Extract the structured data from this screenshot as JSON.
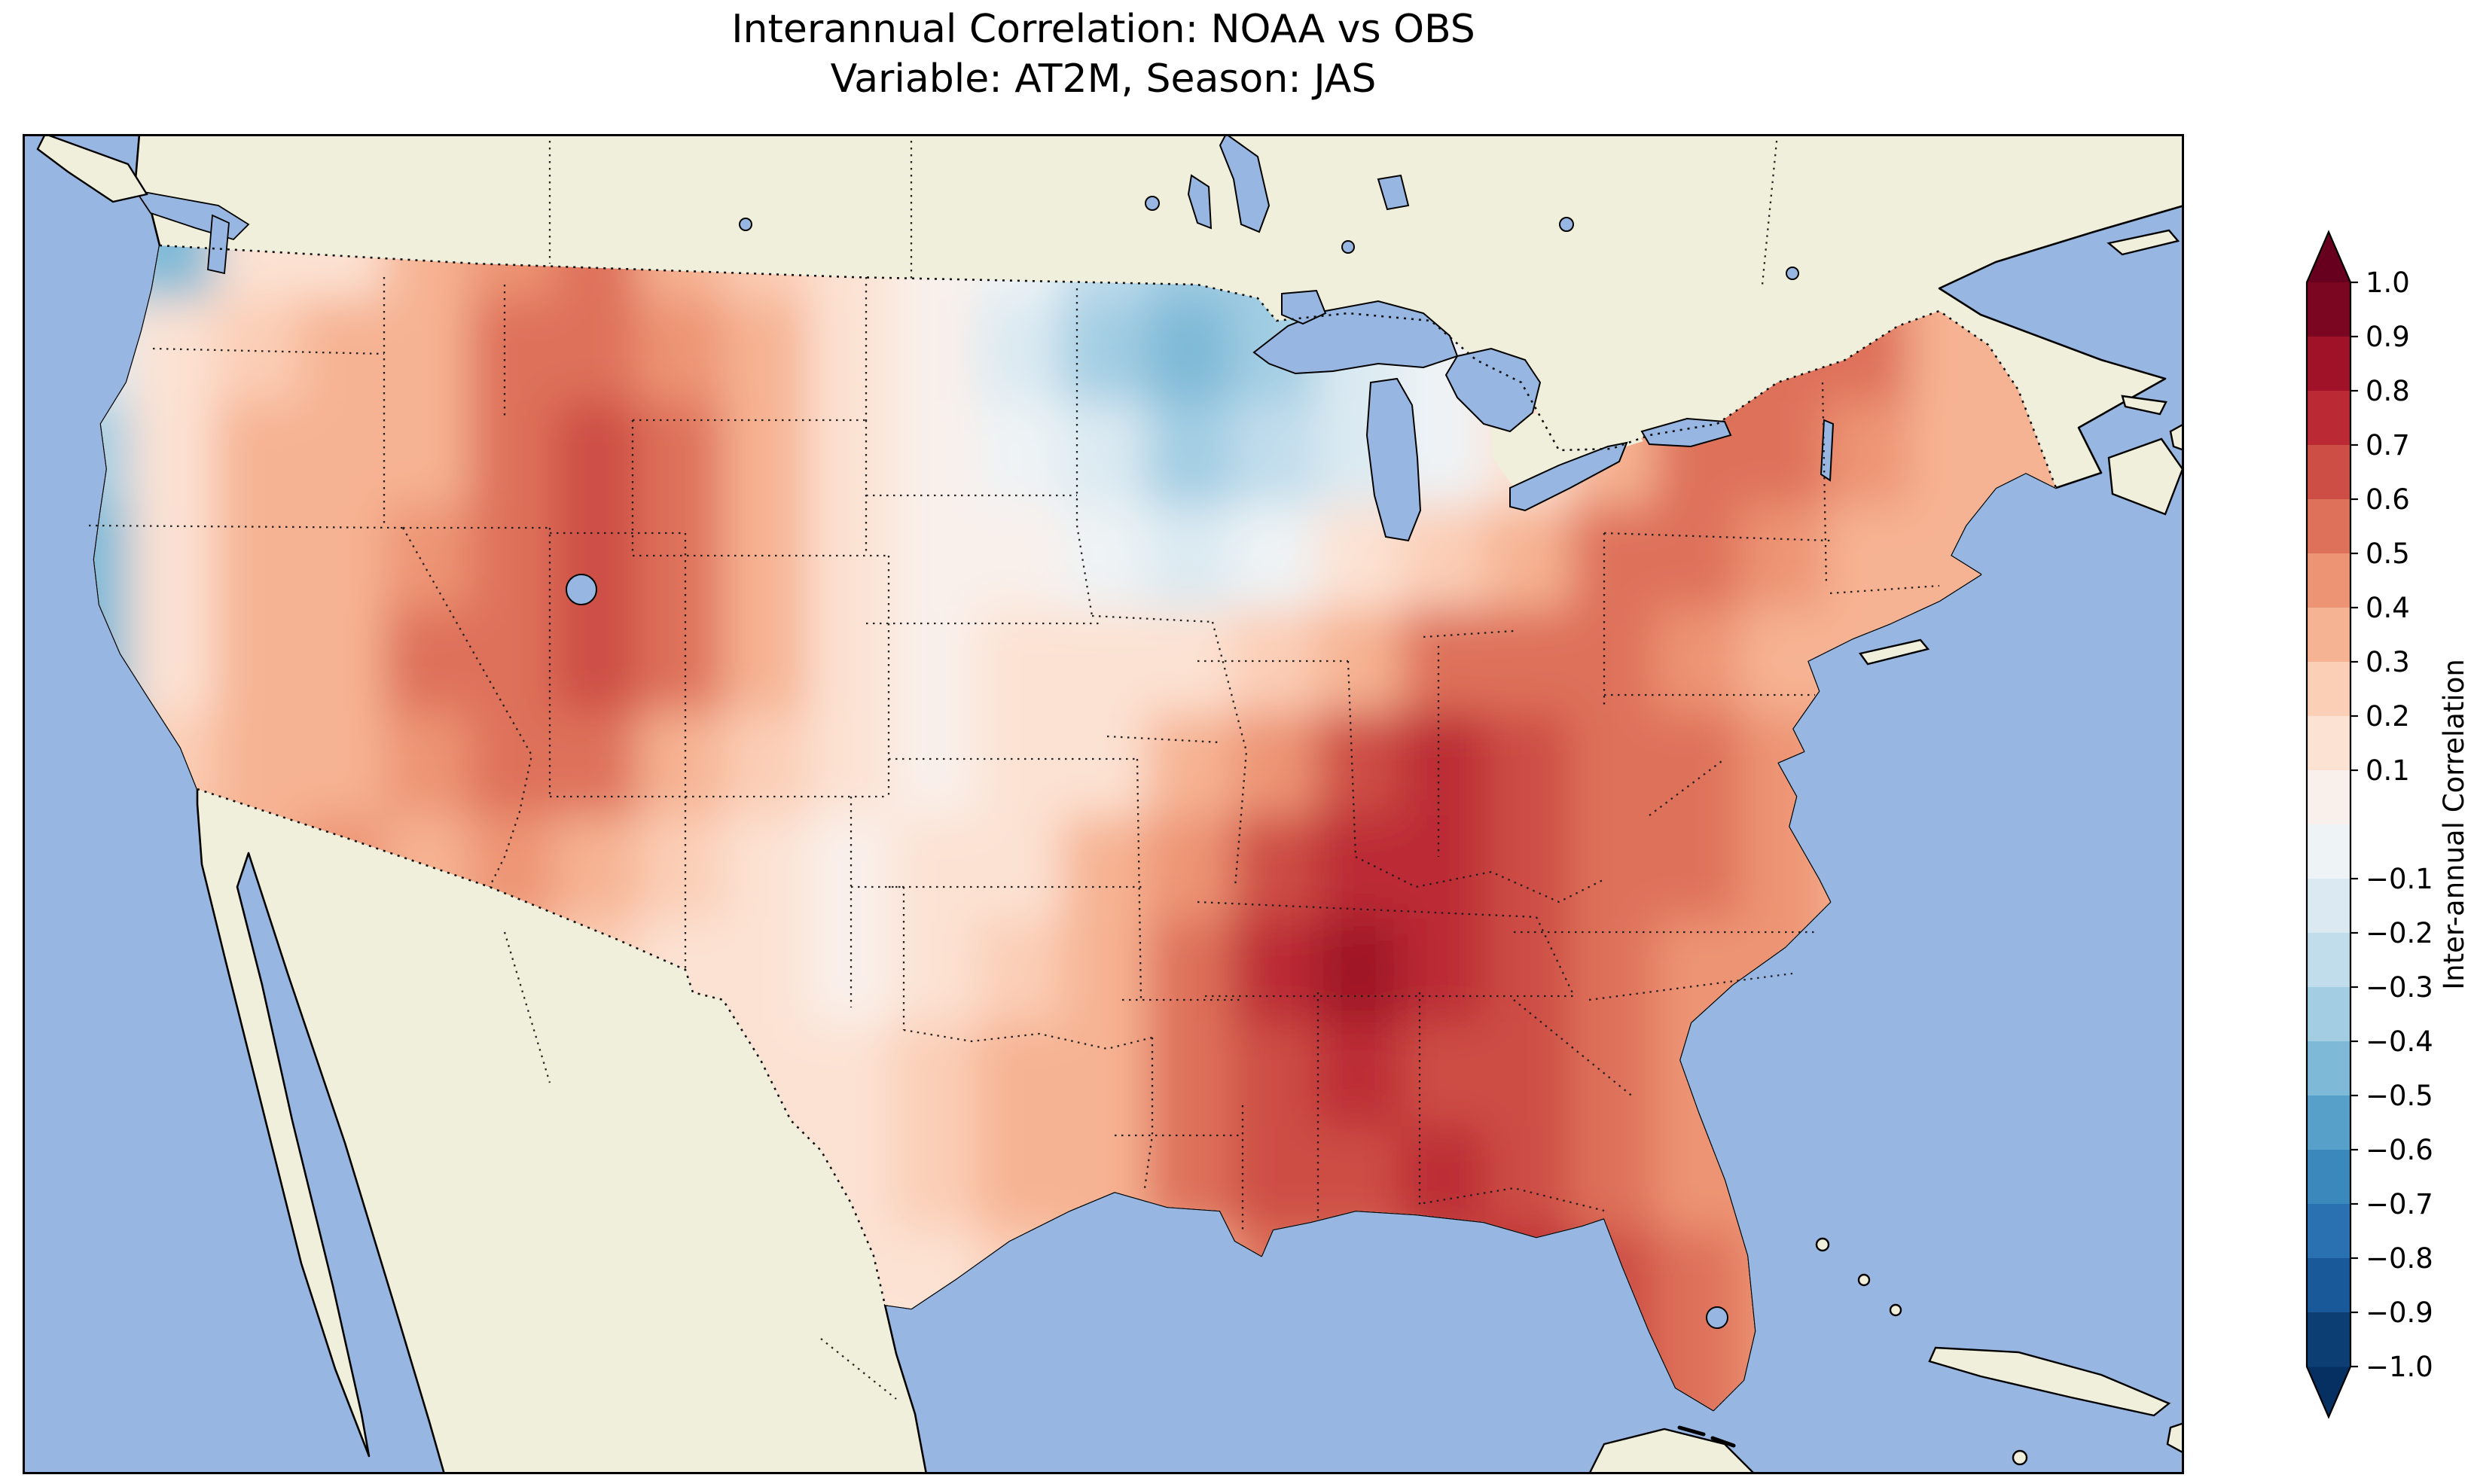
{
  "figure": {
    "title_line1": "Interannual Correlation: NOAA vs OBS",
    "title_line2": "Variable: AT2M, Season: JAS"
  },
  "colorbar": {
    "label": "Inter-annual Correlation",
    "tick_labels": [
      "1.0",
      "0.9",
      "0.8",
      "0.7",
      "0.6",
      "0.5",
      "0.4",
      "0.3",
      "0.2",
      "0.1",
      "−0.1",
      "−0.2",
      "−0.3",
      "−0.4",
      "−0.5",
      "−0.6",
      "−0.7",
      "−0.8",
      "−0.9",
      "−1.0"
    ],
    "tick_values": [
      1.0,
      0.9,
      0.8,
      0.7,
      0.6,
      0.5,
      0.4,
      0.3,
      0.2,
      0.1,
      -0.1,
      -0.2,
      -0.3,
      -0.4,
      -0.5,
      -0.6,
      -0.7,
      -0.8,
      -0.9,
      -1.0
    ],
    "vmin": -1.0,
    "vmax": 1.0,
    "band_colors_low_to_high": [
      "#0c3e74",
      "#1a5999",
      "#2a71b2",
      "#3b88bd",
      "#57a0ca",
      "#7eb9d7",
      "#a2cde3",
      "#c1ddec",
      "#dbeaf2",
      "#eef3f5",
      "#f9f0eb",
      "#fce2d3",
      "#fbceb6",
      "#f6b393",
      "#ed9475",
      "#de715a",
      "#cd4e45",
      "#bb2a34",
      "#9f1228",
      "#7a0622"
    ],
    "under_color": "#053061",
    "over_color": "#67001f"
  },
  "map": {
    "ocean_color": "#97b6e1",
    "land_color": "#efefdb",
    "lake_color": "#97b6e1",
    "coastline_color": "#000000",
    "border_line_style": "dotted",
    "region": "Contiguous United States with southern Canada and northern Mexico"
  },
  "chart_data": {
    "type": "heatmap",
    "title": "Interannual Correlation: NOAA vs OBS",
    "subtitle": "Variable: AT2M, Season: JAS",
    "variable": "AT2M",
    "season": "JAS",
    "datasets_compared": [
      "NOAA",
      "OBS"
    ],
    "colorbar_label": "Inter-annual Correlation",
    "colormap": "RdBu_r",
    "level_step": 0.1,
    "vmin": -1.0,
    "vmax": 1.0,
    "grid_lon_range": [
      -125,
      -67
    ],
    "grid_lat_range": [
      49,
      25
    ],
    "nx": 24,
    "ny": 12,
    "note": "Approximate correlation field read from the contour map; rows run north to south, columns west to east; field is masked to the contiguous US.",
    "values": [
      [
        -0.3,
        -0.4,
        0.1,
        0.2,
        0.3,
        0.45,
        0.5,
        0.35,
        0.25,
        0.15,
        0.05,
        -0.05,
        -0.25,
        -0.35,
        -0.3,
        -0.25,
        -0.1,
        0.1,
        0.2,
        0.4,
        0.5,
        0.45,
        0.35,
        0.3
      ],
      [
        -0.15,
        0.1,
        0.25,
        0.3,
        0.35,
        0.5,
        0.55,
        0.45,
        0.3,
        0.15,
        0.05,
        -0.15,
        -0.35,
        -0.45,
        -0.35,
        -0.2,
        -0.05,
        0.1,
        0.3,
        0.5,
        0.55,
        0.5,
        0.4,
        0.35
      ],
      [
        -0.3,
        0.15,
        0.3,
        0.35,
        0.4,
        0.5,
        0.6,
        0.5,
        0.35,
        0.2,
        0.05,
        -0.05,
        -0.15,
        -0.3,
        -0.25,
        -0.15,
        -0.05,
        0.15,
        0.35,
        0.5,
        0.55,
        0.45,
        0.4,
        0.35
      ],
      [
        -0.45,
        0.1,
        0.35,
        0.4,
        0.45,
        0.55,
        0.6,
        0.5,
        0.3,
        0.15,
        0.05,
        0.05,
        -0.05,
        -0.15,
        -0.05,
        0.1,
        0.25,
        0.4,
        0.5,
        0.5,
        0.45,
        0.4,
        0.35,
        0.35
      ],
      [
        -0.5,
        0.15,
        0.35,
        0.4,
        0.5,
        0.55,
        0.65,
        0.55,
        0.35,
        0.15,
        0.05,
        0.1,
        0.15,
        0.1,
        0.25,
        0.4,
        0.5,
        0.55,
        0.5,
        0.45,
        0.4,
        0.4,
        0.35,
        0.35
      ],
      [
        -0.35,
        0.25,
        0.4,
        0.4,
        0.45,
        0.55,
        0.5,
        0.4,
        0.25,
        0.1,
        0.05,
        0.1,
        0.2,
        0.3,
        0.45,
        0.6,
        0.7,
        0.65,
        0.55,
        0.5,
        0.45,
        0.4,
        0.4,
        0.35
      ],
      [
        -0.3,
        0.3,
        0.4,
        0.45,
        0.4,
        0.45,
        0.35,
        0.25,
        0.15,
        0.05,
        0.1,
        0.2,
        0.3,
        0.45,
        0.6,
        0.7,
        0.75,
        0.65,
        0.55,
        0.5,
        0.45,
        0.4,
        0.4,
        0.35
      ],
      [
        0.1,
        0.2,
        0.35,
        0.4,
        0.35,
        0.3,
        0.25,
        0.2,
        0.1,
        0.05,
        0.15,
        0.25,
        0.35,
        0.5,
        0.7,
        0.8,
        0.75,
        0.65,
        0.55,
        0.45,
        0.45,
        0.4,
        0.4,
        0.35
      ],
      [
        0.15,
        0.2,
        0.3,
        0.35,
        0.3,
        0.2,
        0.2,
        0.15,
        0.1,
        0.15,
        0.25,
        0.3,
        0.4,
        0.55,
        0.65,
        0.7,
        0.65,
        0.6,
        0.55,
        0.45,
        0.45,
        0.4,
        0.4,
        0.35
      ],
      [
        0.15,
        0.15,
        0.2,
        0.25,
        0.2,
        0.2,
        0.15,
        0.1,
        0.1,
        0.15,
        0.25,
        0.35,
        0.4,
        0.5,
        0.6,
        0.65,
        0.7,
        0.65,
        0.55,
        0.45,
        0.45,
        0.4,
        0.4,
        0.35
      ],
      [
        0.15,
        0.15,
        0.2,
        0.2,
        0.2,
        0.2,
        0.15,
        0.1,
        0.05,
        0.1,
        0.2,
        0.25,
        0.3,
        0.4,
        0.5,
        0.55,
        0.65,
        0.7,
        0.6,
        0.5,
        0.45,
        0.4,
        0.4,
        0.35
      ],
      [
        0.15,
        0.15,
        0.2,
        0.2,
        0.2,
        0.2,
        0.15,
        0.1,
        0.05,
        0.05,
        0.2,
        0.25,
        0.3,
        0.4,
        0.5,
        0.55,
        0.6,
        0.7,
        0.6,
        0.5,
        0.45,
        0.4,
        0.4,
        0.35
      ]
    ]
  }
}
